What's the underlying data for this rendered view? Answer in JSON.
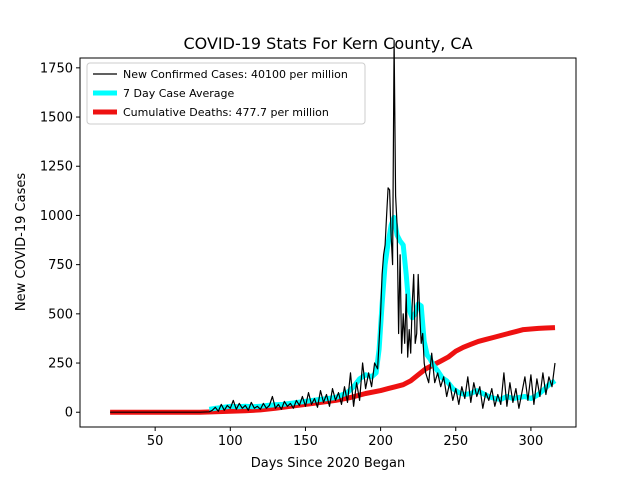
{
  "chart_data": {
    "type": "line",
    "title": "COVID-19 Stats For Kern County, CA",
    "xlabel": "Days Since 2020 Began",
    "ylabel": "New COVID-19 Cases",
    "xlim": [
      0,
      330
    ],
    "ylim": [
      -75,
      1800
    ],
    "xticks": [
      50,
      100,
      150,
      200,
      250,
      300
    ],
    "yticks": [
      0,
      250,
      500,
      750,
      1000,
      1250,
      1500,
      1750
    ],
    "grid": false,
    "legend_position": "top-left",
    "series": [
      {
        "name": "New Confirmed Cases: 40100 per million",
        "color": "#000000",
        "points": [
          [
            20,
            0
          ],
          [
            40,
            0
          ],
          [
            60,
            0
          ],
          [
            80,
            0
          ],
          [
            86,
            2
          ],
          [
            88,
            10
          ],
          [
            90,
            25
          ],
          [
            92,
            5
          ],
          [
            94,
            40
          ],
          [
            96,
            10
          ],
          [
            98,
            35
          ],
          [
            100,
            20
          ],
          [
            102,
            60
          ],
          [
            104,
            15
          ],
          [
            106,
            45
          ],
          [
            108,
            20
          ],
          [
            110,
            35
          ],
          [
            112,
            10
          ],
          [
            114,
            50
          ],
          [
            116,
            20
          ],
          [
            118,
            30
          ],
          [
            120,
            15
          ],
          [
            122,
            45
          ],
          [
            124,
            20
          ],
          [
            126,
            35
          ],
          [
            128,
            80
          ],
          [
            130,
            20
          ],
          [
            132,
            40
          ],
          [
            134,
            15
          ],
          [
            136,
            55
          ],
          [
            138,
            30
          ],
          [
            140,
            45
          ],
          [
            142,
            20
          ],
          [
            144,
            60
          ],
          [
            146,
            35
          ],
          [
            148,
            80
          ],
          [
            150,
            30
          ],
          [
            152,
            100
          ],
          [
            154,
            40
          ],
          [
            156,
            70
          ],
          [
            158,
            25
          ],
          [
            160,
            110
          ],
          [
            162,
            50
          ],
          [
            164,
            90
          ],
          [
            166,
            30
          ],
          [
            168,
            120
          ],
          [
            170,
            60
          ],
          [
            172,
            100
          ],
          [
            174,
            40
          ],
          [
            176,
            130
          ],
          [
            178,
            50
          ],
          [
            180,
            200
          ],
          [
            182,
            30
          ],
          [
            184,
            150
          ],
          [
            186,
            60
          ],
          [
            188,
            250
          ],
          [
            190,
            120
          ],
          [
            192,
            200
          ],
          [
            194,
            130
          ],
          [
            196,
            250
          ],
          [
            198,
            220
          ],
          [
            200,
            500
          ],
          [
            201,
            700
          ],
          [
            202,
            800
          ],
          [
            203,
            850
          ],
          [
            204,
            1000
          ],
          [
            205,
            1140
          ],
          [
            206,
            1130
          ],
          [
            207,
            900
          ],
          [
            208,
            750
          ],
          [
            209,
            1890
          ],
          [
            210,
            1100
          ],
          [
            211,
            950
          ],
          [
            212,
            400
          ],
          [
            213,
            800
          ],
          [
            214,
            300
          ],
          [
            215,
            500
          ],
          [
            216,
            350
          ],
          [
            217,
            600
          ],
          [
            218,
            280
          ],
          [
            219,
            420
          ],
          [
            220,
            300
          ],
          [
            221,
            550
          ],
          [
            222,
            700
          ],
          [
            223,
            350
          ],
          [
            224,
            400
          ],
          [
            225,
            700
          ],
          [
            226,
            500
          ],
          [
            227,
            350
          ],
          [
            228,
            400
          ],
          [
            229,
            250
          ],
          [
            230,
            200
          ],
          [
            232,
            150
          ],
          [
            234,
            300
          ],
          [
            236,
            150
          ],
          [
            238,
            200
          ],
          [
            240,
            130
          ],
          [
            242,
            180
          ],
          [
            244,
            80
          ],
          [
            246,
            150
          ],
          [
            248,
            60
          ],
          [
            250,
            120
          ],
          [
            252,
            40
          ],
          [
            254,
            130
          ],
          [
            256,
            70
          ],
          [
            258,
            180
          ],
          [
            260,
            50
          ],
          [
            262,
            150
          ],
          [
            264,
            80
          ],
          [
            266,
            130
          ],
          [
            268,
            20
          ],
          [
            270,
            100
          ],
          [
            272,
            60
          ],
          [
            274,
            120
          ],
          [
            276,
            30
          ],
          [
            278,
            90
          ],
          [
            280,
            40
          ],
          [
            282,
            200
          ],
          [
            284,
            30
          ],
          [
            286,
            150
          ],
          [
            288,
            50
          ],
          [
            290,
            120
          ],
          [
            292,
            20
          ],
          [
            294,
            100
          ],
          [
            296,
            180
          ],
          [
            298,
            60
          ],
          [
            300,
            190
          ],
          [
            302,
            40
          ],
          [
            304,
            170
          ],
          [
            306,
            80
          ],
          [
            308,
            200
          ],
          [
            310,
            90
          ],
          [
            312,
            180
          ],
          [
            314,
            130
          ],
          [
            316,
            250
          ]
        ]
      },
      {
        "name": "7 Day Case Average",
        "color": "#00ffff",
        "points": [
          [
            86,
            15
          ],
          [
            90,
            20
          ],
          [
            95,
            25
          ],
          [
            100,
            30
          ],
          [
            105,
            28
          ],
          [
            110,
            30
          ],
          [
            115,
            28
          ],
          [
            120,
            30
          ],
          [
            125,
            35
          ],
          [
            130,
            38
          ],
          [
            135,
            40
          ],
          [
            140,
            45
          ],
          [
            145,
            50
          ],
          [
            150,
            55
          ],
          [
            155,
            60
          ],
          [
            160,
            65
          ],
          [
            165,
            70
          ],
          [
            170,
            75
          ],
          [
            175,
            90
          ],
          [
            178,
            100
          ],
          [
            182,
            130
          ],
          [
            186,
            170
          ],
          [
            190,
            190
          ],
          [
            194,
            180
          ],
          [
            197,
            200
          ],
          [
            199,
            320
          ],
          [
            201,
            550
          ],
          [
            203,
            750
          ],
          [
            205,
            860
          ],
          [
            207,
            950
          ],
          [
            209,
            990
          ],
          [
            211,
            900
          ],
          [
            213,
            870
          ],
          [
            215,
            850
          ],
          [
            217,
            700
          ],
          [
            219,
            520
          ],
          [
            221,
            480
          ],
          [
            223,
            500
          ],
          [
            225,
            550
          ],
          [
            227,
            540
          ],
          [
            228,
            450
          ],
          [
            229,
            360
          ],
          [
            231,
            290
          ],
          [
            233,
            270
          ],
          [
            235,
            240
          ],
          [
            238,
            210
          ],
          [
            241,
            175
          ],
          [
            244,
            160
          ],
          [
            248,
            120
          ],
          [
            252,
            100
          ],
          [
            256,
            90
          ],
          [
            260,
            95
          ],
          [
            264,
            110
          ],
          [
            268,
            95
          ],
          [
            272,
            80
          ],
          [
            276,
            70
          ],
          [
            280,
            65
          ],
          [
            284,
            80
          ],
          [
            288,
            70
          ],
          [
            292,
            75
          ],
          [
            296,
            80
          ],
          [
            300,
            70
          ],
          [
            304,
            85
          ],
          [
            308,
            110
          ],
          [
            312,
            140
          ],
          [
            316,
            160
          ]
        ]
      },
      {
        "name": "Cumulative Deaths: 477.7 per million",
        "color": "#ee1111",
        "points": [
          [
            20,
            0
          ],
          [
            40,
            0
          ],
          [
            60,
            0
          ],
          [
            80,
            0
          ],
          [
            90,
            2
          ],
          [
            100,
            5
          ],
          [
            110,
            8
          ],
          [
            120,
            12
          ],
          [
            130,
            20
          ],
          [
            140,
            30
          ],
          [
            150,
            40
          ],
          [
            160,
            50
          ],
          [
            170,
            60
          ],
          [
            180,
            75
          ],
          [
            190,
            95
          ],
          [
            200,
            110
          ],
          [
            205,
            120
          ],
          [
            210,
            130
          ],
          [
            215,
            140
          ],
          [
            220,
            160
          ],
          [
            225,
            190
          ],
          [
            230,
            220
          ],
          [
            235,
            240
          ],
          [
            240,
            260
          ],
          [
            245,
            280
          ],
          [
            250,
            310
          ],
          [
            255,
            330
          ],
          [
            260,
            345
          ],
          [
            265,
            360
          ],
          [
            270,
            370
          ],
          [
            275,
            380
          ],
          [
            280,
            390
          ],
          [
            285,
            400
          ],
          [
            290,
            410
          ],
          [
            295,
            420
          ],
          [
            300,
            423
          ],
          [
            305,
            426
          ],
          [
            310,
            428
          ],
          [
            316,
            430
          ]
        ]
      }
    ]
  }
}
